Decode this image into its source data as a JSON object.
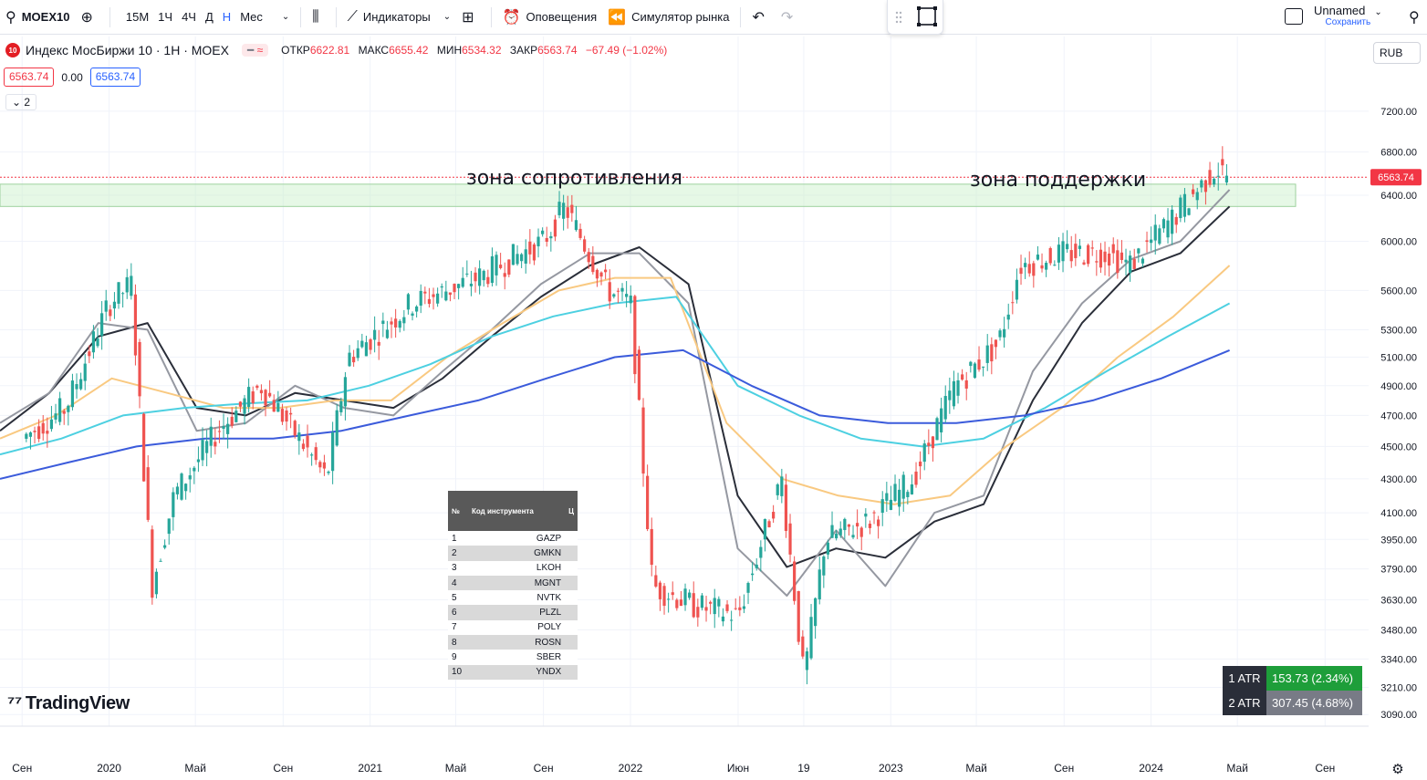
{
  "toolbar": {
    "symbol": "MOEX10",
    "intervals": [
      {
        "label": "15M",
        "active": false
      },
      {
        "label": "1Ч",
        "active": false
      },
      {
        "label": "4Ч",
        "active": false
      },
      {
        "label": "Д",
        "active": false
      },
      {
        "label": "Н",
        "active": true
      },
      {
        "label": "Мес",
        "active": false
      }
    ],
    "indicators_label": "Индикаторы",
    "alerts_label": "Оповещения",
    "simulator_label": "Симулятор рынка",
    "layout_name": "Unnamed",
    "save_label": "Сохранить"
  },
  "legend": {
    "logo_text": "10",
    "title": "Индекс МосБиржи 10 · 1Н · MOEX",
    "badge": "≈",
    "open_label": "ОТКР",
    "open": "6622.81",
    "high_label": "МАКС",
    "high": "6655.42",
    "low_label": "МИН",
    "low": "6534.32",
    "close_label": "ЗАКР",
    "close": "6563.74",
    "change": "−67.49 (−1.02%)",
    "bid": "6563.74",
    "spread": "0.00",
    "ask": "6563.74",
    "collapse": "2"
  },
  "currency": "RUB",
  "zones": {
    "resistance_label": "зона сопротивления",
    "support_label": "зона поддержки"
  },
  "table": {
    "headers": [
      "№",
      "Код инструмента",
      "Ц"
    ],
    "rows": [
      {
        "n": "1",
        "code": "GAZP"
      },
      {
        "n": "2",
        "code": "GMKN"
      },
      {
        "n": "3",
        "code": "LKOH"
      },
      {
        "n": "4",
        "code": "MGNT"
      },
      {
        "n": "5",
        "code": "NVTK"
      },
      {
        "n": "6",
        "code": "PLZL"
      },
      {
        "n": "7",
        "code": "POLY"
      },
      {
        "n": "8",
        "code": "ROSN"
      },
      {
        "n": "9",
        "code": "SBER"
      },
      {
        "n": "10",
        "code": "YNDX"
      }
    ]
  },
  "atr": [
    {
      "label": "1 ATR",
      "value": "153.73 (2.34%)",
      "color": "#1e9e3a"
    },
    {
      "label": "2 ATR",
      "value": "307.45 (4.68%)",
      "color": "#787b86"
    }
  ],
  "brand": "TradingView",
  "chart_data": {
    "type": "candlestick",
    "scale": "log",
    "price_axis": [
      "7200.00",
      "6800.00",
      "6400.00",
      "6000.00",
      "5600.00",
      "5300.00",
      "5100.00",
      "4900.00",
      "4700.00",
      "4500.00",
      "4300.00",
      "4100.00",
      "3950.00",
      "3790.00",
      "3630.00",
      "3480.00",
      "3340.00",
      "3210.00",
      "3090.00"
    ],
    "last_price": "6563.74",
    "time_axis": [
      "Сен",
      "2020",
      "Май",
      "Сен",
      "2021",
      "Май",
      "Сен",
      "2022",
      "Июн",
      "19",
      "2023",
      "Май",
      "Сен",
      "2024",
      "Май",
      "Сен"
    ],
    "time_axis_dates": [
      "2019-09",
      "2020-01",
      "2020-05",
      "2020-09",
      "2021-01",
      "2021-05",
      "2021-09",
      "2022-01",
      "2022-06",
      "2022-09",
      "2023-01",
      "2023-05",
      "2023-09",
      "2024-01",
      "2024-05",
      "2024-09"
    ],
    "zone_range": [
      6300,
      6500
    ],
    "price_path": [
      [
        "2019-09",
        4550
      ],
      [
        "2019-11",
        4750
      ],
      [
        "2020-01",
        5500
      ],
      [
        "2020-02",
        5650
      ],
      [
        "2020-03",
        3700
      ],
      [
        "2020-04",
        4200
      ],
      [
        "2020-06",
        4600
      ],
      [
        "2020-08",
        4900
      ],
      [
        "2020-10",
        4500
      ],
      [
        "2020-11",
        4300
      ],
      [
        "2020-12",
        5100
      ],
      [
        "2021-03",
        5500
      ],
      [
        "2021-06",
        5700
      ],
      [
        "2021-09",
        6000
      ],
      [
        "2021-10",
        6300
      ],
      [
        "2021-12",
        5600
      ],
      [
        "2022-01",
        5500
      ],
      [
        "2022-02",
        3700
      ],
      [
        "2022-04",
        3600
      ],
      [
        "2022-06",
        3550
      ],
      [
        "2022-08",
        4300
      ],
      [
        "2022-09",
        3250
      ],
      [
        "2022-10",
        3950
      ],
      [
        "2022-12",
        4050
      ],
      [
        "2023-02",
        4300
      ],
      [
        "2023-04",
        4900
      ],
      [
        "2023-06",
        5200
      ],
      [
        "2023-07",
        5800
      ],
      [
        "2023-09",
        5900
      ],
      [
        "2023-11",
        5900
      ],
      [
        "2023-12",
        5800
      ],
      [
        "2024-02",
        6200
      ],
      [
        "2024-04",
        6650
      ],
      [
        "2024-04-20",
        6564
      ]
    ],
    "moving_averages": [
      {
        "color": "#2a2e39",
        "values": [
          4600,
          4850,
          5250,
          5350,
          4750,
          4700,
          4850,
          4800,
          4750,
          4950,
          5250,
          5550,
          5800,
          5950,
          5650,
          4200,
          3800,
          3900,
          3850,
          4050,
          4150,
          4800,
          5350,
          5750,
          5900,
          6300
        ]
      },
      {
        "color": "#9598a1",
        "values": [
          4650,
          4850,
          5350,
          5300,
          4600,
          4650,
          4900,
          4750,
          4700,
          5000,
          5300,
          5650,
          5900,
          5900,
          5500,
          3900,
          3650,
          4000,
          3700,
          4100,
          4200,
          5000,
          5500,
          5850,
          6000,
          6450
        ]
      },
      {
        "color": "#f9c981",
        "values": [
          4550,
          4700,
          4950,
          4850,
          4750,
          4750,
          4800,
          4800,
          5100,
          5350,
          5600,
          5700,
          5700,
          4650,
          4300,
          4200,
          4150,
          4200,
          4500,
          4750,
          5100,
          5400,
          5800
        ]
      },
      {
        "color": "#4dd0e1",
        "values": [
          4450,
          4550,
          4700,
          4750,
          4780,
          4800,
          4900,
          5050,
          5250,
          5400,
          5500,
          5550,
          4900,
          4700,
          4550,
          4500,
          4550,
          4750,
          5000,
          5250,
          5500
        ]
      },
      {
        "color": "#3b5bdb",
        "values": [
          4300,
          4400,
          4500,
          4550,
          4550,
          4600,
          4700,
          4800,
          4950,
          5100,
          5150,
          4900,
          4700,
          4650,
          4650,
          4700,
          4800,
          4950,
          5150
        ]
      }
    ]
  }
}
